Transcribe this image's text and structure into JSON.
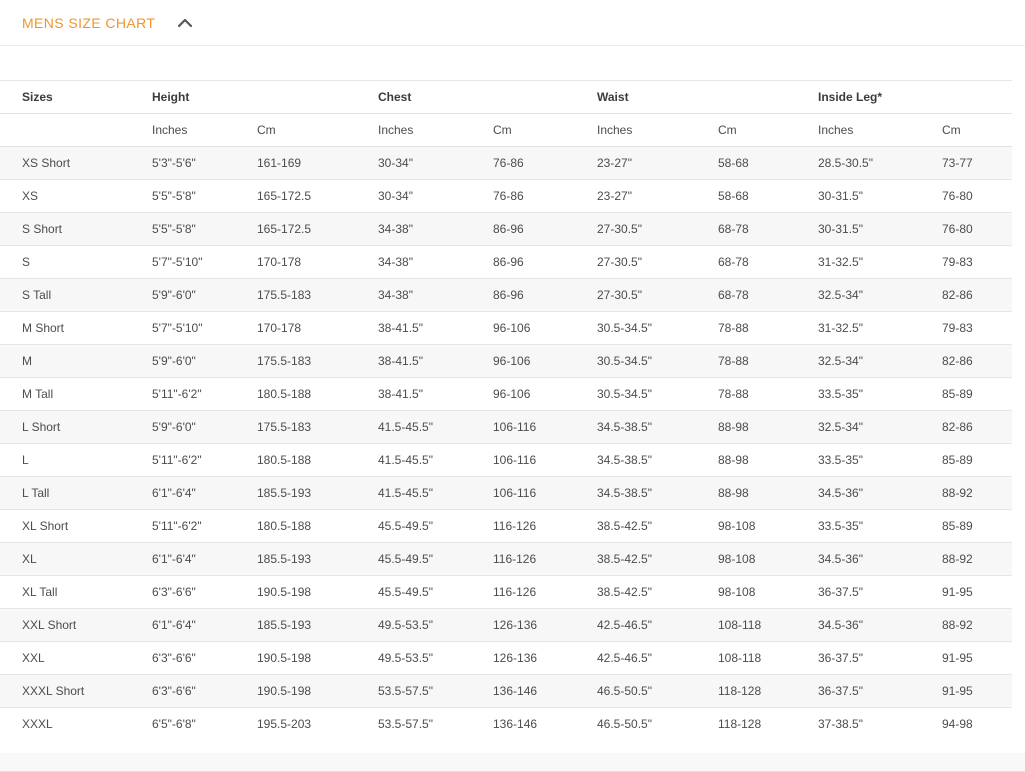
{
  "header": {
    "title": "MENS SIZE CHART",
    "collapse_icon": "chevron-up",
    "accent_color": "#f0952d",
    "icon_color": "#55575a"
  },
  "table": {
    "column_groups": [
      {
        "label": "Sizes",
        "subcolumns": []
      },
      {
        "label": "Height",
        "subcolumns": [
          "Inches",
          "Cm"
        ]
      },
      {
        "label": "Chest",
        "subcolumns": [
          "Inches",
          "Cm"
        ]
      },
      {
        "label": "Waist",
        "subcolumns": [
          "Inches",
          "Cm"
        ]
      },
      {
        "label": "Inside Leg*",
        "subcolumns": [
          "Inches",
          "Cm"
        ]
      }
    ],
    "rows": [
      [
        "XS Short",
        "5'3\"-5'6\"",
        "161-169",
        "30-34\"",
        "76-86",
        "23-27\"",
        "58-68",
        "28.5-30.5\"",
        "73-77"
      ],
      [
        "XS",
        "5'5\"-5'8\"",
        "165-172.5",
        "30-34\"",
        "76-86",
        "23-27\"",
        "58-68",
        "30-31.5\"",
        "76-80"
      ],
      [
        "S Short",
        "5'5\"-5'8\"",
        "165-172.5",
        "34-38\"",
        "86-96",
        "27-30.5\"",
        "68-78",
        "30-31.5\"",
        "76-80"
      ],
      [
        "S",
        "5'7\"-5'10\"",
        "170-178",
        "34-38\"",
        "86-96",
        "27-30.5\"",
        "68-78",
        "31-32.5\"",
        "79-83"
      ],
      [
        "S Tall",
        "5'9\"-6'0\"",
        "175.5-183",
        "34-38\"",
        "86-96",
        "27-30.5\"",
        "68-78",
        "32.5-34\"",
        "82-86"
      ],
      [
        "M Short",
        "5'7\"-5'10\"",
        "170-178",
        "38-41.5\"",
        "96-106",
        "30.5-34.5\"",
        "78-88",
        "31-32.5\"",
        "79-83"
      ],
      [
        "M",
        "5'9\"-6'0\"",
        "175.5-183",
        "38-41.5\"",
        "96-106",
        "30.5-34.5\"",
        "78-88",
        "32.5-34\"",
        "82-86"
      ],
      [
        "M Tall",
        "5'11\"-6'2\"",
        "180.5-188",
        "38-41.5\"",
        "96-106",
        "30.5-34.5\"",
        "78-88",
        "33.5-35\"",
        "85-89"
      ],
      [
        "L Short",
        "5'9\"-6'0\"",
        "175.5-183",
        "41.5-45.5\"",
        "106-116",
        "34.5-38.5\"",
        "88-98",
        "32.5-34\"",
        "82-86"
      ],
      [
        "L",
        "5'11\"-6'2\"",
        "180.5-188",
        "41.5-45.5\"",
        "106-116",
        "34.5-38.5\"",
        "88-98",
        "33.5-35\"",
        "85-89"
      ],
      [
        "L Tall",
        "6'1\"-6'4\"",
        "185.5-193",
        "41.5-45.5\"",
        "106-116",
        "34.5-38.5\"",
        "88-98",
        "34.5-36\"",
        "88-92"
      ],
      [
        "XL Short",
        "5'11\"-6'2\"",
        "180.5-188",
        "45.5-49.5\"",
        "116-126",
        "38.5-42.5\"",
        "98-108",
        "33.5-35\"",
        "85-89"
      ],
      [
        "XL",
        "6'1\"-6'4\"",
        "185.5-193",
        "45.5-49.5\"",
        "116-126",
        "38.5-42.5\"",
        "98-108",
        "34.5-36\"",
        "88-92"
      ],
      [
        "XL Tall",
        "6'3\"-6'6\"",
        "190.5-198",
        "45.5-49.5\"",
        "116-126",
        "38.5-42.5\"",
        "98-108",
        "36-37.5\"",
        "91-95"
      ],
      [
        "XXL Short",
        "6'1\"-6'4\"",
        "185.5-193",
        "49.5-53.5\"",
        "126-136",
        "42.5-46.5\"",
        "108-118",
        "34.5-36\"",
        "88-92"
      ],
      [
        "XXL",
        "6'3\"-6'6\"",
        "190.5-198",
        "49.5-53.5\"",
        "126-136",
        "42.5-46.5\"",
        "108-118",
        "36-37.5\"",
        "91-95"
      ],
      [
        "XXXL Short",
        "6'3\"-6'6\"",
        "190.5-198",
        "53.5-57.5\"",
        "136-146",
        "46.5-50.5\"",
        "118-128",
        "36-37.5\"",
        "91-95"
      ],
      [
        "XXXL",
        "6'5\"-6'8\"",
        "195.5-203",
        "53.5-57.5\"",
        "136-146",
        "46.5-50.5\"",
        "118-128",
        "37-38.5\"",
        "94-98"
      ]
    ]
  },
  "colors": {
    "row_alt_background": "#f7f7f7",
    "row_border": "#e6e6e6",
    "header_text": "#3b3b3b",
    "cell_text": "#4c4c4c",
    "footer_band": "#f8f8f8"
  }
}
